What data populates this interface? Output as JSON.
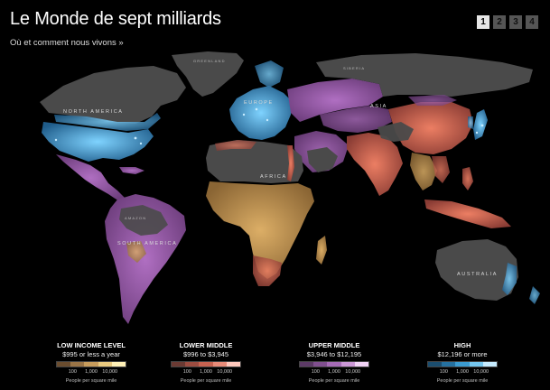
{
  "header": {
    "title": "Le Monde de sept milliards",
    "subtitle": "Où et comment nous vivons »"
  },
  "pager": {
    "pages": [
      "1",
      "2",
      "3",
      "4"
    ],
    "current": "1"
  },
  "map": {
    "labels": {
      "north_america": "NORTH AMERICA",
      "south_america": "SOUTH AMERICA",
      "europe": "EUROPE",
      "africa": "AFRICA",
      "asia": "ASIA",
      "australia": "AUSTRALIA",
      "amazon": "AMAZON",
      "greenland": "GREENLAND",
      "siberia": "SIBERIA"
    }
  },
  "legend": {
    "ticks": [
      "100",
      "1,000",
      "10,000"
    ],
    "unit": "People per square mile",
    "categories": [
      {
        "title": "LOW INCOME LEVEL",
        "range": "$995 or less a year",
        "colors": [
          "#6b4d2f",
          "#9a7446",
          "#c79c5c",
          "#e9c97f",
          "#fff0b6"
        ]
      },
      {
        "title": "LOWER MIDDLE",
        "range": "$996 to $3,945",
        "colors": [
          "#6b3a33",
          "#9c4c40",
          "#c66250",
          "#e88b78",
          "#ffc9bd"
        ]
      },
      {
        "title": "UPPER MIDDLE",
        "range": "$3,946 to $12,195",
        "colors": [
          "#5c3a66",
          "#804f8f",
          "#a66bb6",
          "#cb97d6",
          "#f1d3f5"
        ]
      },
      {
        "title": "HIGH",
        "range": "$12,196 or more",
        "colors": [
          "#1b4d6e",
          "#2571a0",
          "#3b9bd0",
          "#74c6ee",
          "#c6ecff"
        ]
      }
    ]
  },
  "colors": {
    "no_data_land": "#4a4a4a",
    "ocean": "#000000",
    "low_income": "#c79c5c",
    "lower_middle": "#c66250",
    "upper_middle": "#a66bb6",
    "high": "#3b9bd0"
  }
}
